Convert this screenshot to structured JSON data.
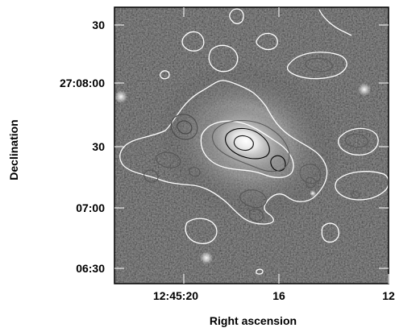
{
  "chart_data": {
    "type": "image",
    "title": "",
    "xlabel": "Right ascension",
    "ylabel": "Declination",
    "x_ticks": [
      "12:45:20",
      "16",
      "12"
    ],
    "y_ticks": [
      "30",
      "27:08:00",
      "30",
      "07:00",
      "06:30"
    ],
    "colormap": "grayscale",
    "contour_color": "#ffffff",
    "inner_contour_color": "#000000"
  }
}
